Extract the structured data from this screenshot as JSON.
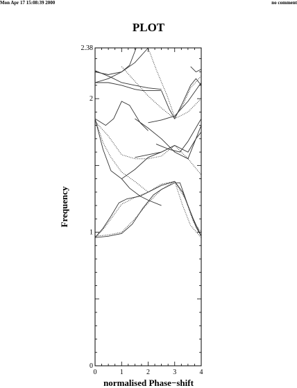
{
  "header": {
    "timestamp": "Mon Apr 17 15:08:39 2000",
    "comment": "no comment"
  },
  "chart_data": {
    "type": "line",
    "title": "PLOT",
    "xlabel": "normalised Phase−shift",
    "ylabel": "Frequency",
    "xlim": [
      0,
      4
    ],
    "ylim": [
      0,
      2.38
    ],
    "xticks": [
      "0",
      "1",
      "2",
      "3",
      "4"
    ],
    "yticks": [
      "0",
      "1",
      "2",
      "2.38"
    ],
    "grid": false,
    "series": [
      {
        "style": "solid",
        "points": [
          [
            0,
            2.2
          ],
          [
            0.5,
            2.18
          ],
          [
            1,
            2.2
          ],
          [
            1.5,
            2.27
          ],
          [
            2,
            2.38
          ]
        ]
      },
      {
        "style": "solid",
        "points": [
          [
            0,
            2.12
          ],
          [
            0.5,
            2.15
          ],
          [
            1,
            2.2
          ],
          [
            1.3,
            2.25
          ],
          [
            1.55,
            2.38
          ]
        ]
      },
      {
        "style": "solid",
        "points": [
          [
            0,
            2.12
          ],
          [
            0.5,
            2.12
          ],
          [
            1,
            2.1
          ],
          [
            1.5,
            2.07
          ],
          [
            1.8,
            2.06
          ],
          [
            2.5,
            2.06
          ]
        ]
      },
      {
        "style": "solid",
        "points": [
          [
            0,
            2.21
          ],
          [
            0.6,
            2.16
          ],
          [
            1,
            2.12
          ],
          [
            1.5,
            2.1
          ],
          [
            2,
            2.08
          ],
          [
            2.5,
            2.07
          ]
        ]
      },
      {
        "style": "dotted",
        "points": [
          [
            1,
            2.24
          ],
          [
            1.5,
            2.13
          ],
          [
            2,
            2.02
          ],
          [
            2.5,
            1.93
          ],
          [
            3,
            1.85
          ],
          [
            3.5,
            1.9
          ],
          [
            4,
            2.0
          ]
        ]
      },
      {
        "style": "dotted",
        "points": [
          [
            2,
            2.38
          ],
          [
            2.3,
            2.22
          ],
          [
            2.7,
            2.03
          ],
          [
            3,
            1.86
          ],
          [
            3.3,
            1.95
          ],
          [
            3.6,
            2.08
          ],
          [
            4,
            2.17
          ]
        ]
      },
      {
        "style": "solid",
        "points": [
          [
            2.5,
            2.06
          ],
          [
            2.8,
            1.92
          ],
          [
            3,
            1.85
          ],
          [
            3.3,
            1.97
          ],
          [
            3.6,
            2.1
          ],
          [
            3.8,
            2.15
          ],
          [
            4,
            2.1
          ]
        ]
      },
      {
        "style": "solid",
        "points": [
          [
            3.6,
            2.24
          ],
          [
            3.8,
            2.2
          ],
          [
            4,
            2.22
          ]
        ]
      },
      {
        "style": "solid",
        "points": [
          [
            0,
            1.85
          ],
          [
            0.4,
            1.8
          ],
          [
            0.7,
            1.85
          ],
          [
            1,
            1.98
          ],
          [
            1.3,
            1.95
          ],
          [
            1.7,
            1.82
          ],
          [
            2,
            1.76
          ]
        ]
      },
      {
        "style": "solid",
        "points": [
          [
            0,
            1.85
          ],
          [
            0.3,
            1.62
          ],
          [
            0.6,
            1.46
          ],
          [
            1,
            1.4
          ],
          [
            1.5,
            1.47
          ],
          [
            2,
            1.56
          ],
          [
            2.5,
            1.6
          ],
          [
            3,
            1.65
          ]
        ]
      },
      {
        "style": "dotted",
        "points": [
          [
            0,
            1.85
          ],
          [
            0.3,
            1.67
          ],
          [
            0.6,
            1.56
          ],
          [
            1,
            1.45
          ],
          [
            1.5,
            1.38
          ],
          [
            2,
            1.3
          ]
        ]
      },
      {
        "style": "dotted",
        "points": [
          [
            0,
            1.83
          ],
          [
            0.5,
            1.72
          ],
          [
            1,
            1.58
          ],
          [
            1.5,
            1.55
          ],
          [
            2,
            1.55
          ],
          [
            2.5,
            1.57
          ],
          [
            3,
            1.65
          ],
          [
            3.5,
            1.55
          ],
          [
            4,
            1.43
          ]
        ]
      },
      {
        "style": "solid",
        "points": [
          [
            2,
            1.82
          ],
          [
            2.5,
            1.84
          ],
          [
            3,
            1.87
          ],
          [
            3.5,
            1.98
          ],
          [
            4,
            2.12
          ]
        ]
      },
      {
        "style": "solid",
        "points": [
          [
            1.5,
            1.85
          ],
          [
            2,
            1.78
          ],
          [
            2.5,
            1.7
          ],
          [
            3,
            1.6
          ],
          [
            3.5,
            1.55
          ],
          [
            4,
            1.8
          ]
        ]
      },
      {
        "style": "solid",
        "points": [
          [
            2.3,
            1.66
          ],
          [
            2.8,
            1.62
          ],
          [
            3.2,
            1.6
          ],
          [
            3.5,
            1.68
          ],
          [
            4,
            1.85
          ]
        ]
      },
      {
        "style": "solid",
        "points": [
          [
            1.5,
            1.56
          ],
          [
            2,
            1.58
          ],
          [
            2.5,
            1.6
          ],
          [
            3,
            1.65
          ],
          [
            3.5,
            1.6
          ],
          [
            3.8,
            1.7
          ],
          [
            4,
            1.75
          ]
        ]
      },
      {
        "style": "solid",
        "points": [
          [
            1,
            1.4
          ],
          [
            1.3,
            1.33
          ],
          [
            1.7,
            1.27
          ],
          [
            2,
            1.24
          ],
          [
            2.5,
            1.2
          ]
        ]
      },
      {
        "style": "solid",
        "points": [
          [
            0,
            0.96
          ],
          [
            0.3,
            1.03
          ],
          [
            0.6,
            1.12
          ],
          [
            0.9,
            1.22
          ],
          [
            1.2,
            1.25
          ],
          [
            1.7,
            1.27
          ],
          [
            2,
            1.3
          ],
          [
            2.5,
            1.35
          ],
          [
            3,
            1.38
          ],
          [
            3.3,
            1.3
          ],
          [
            3.7,
            1.1
          ],
          [
            4,
            0.97
          ]
        ]
      },
      {
        "style": "solid",
        "points": [
          [
            0,
            0.96
          ],
          [
            0.5,
            0.97
          ],
          [
            1,
            0.99
          ],
          [
            1.4,
            1.06
          ],
          [
            1.8,
            1.18
          ],
          [
            2.2,
            1.28
          ],
          [
            2.5,
            1.32
          ],
          [
            3,
            1.37
          ],
          [
            3.2,
            1.37
          ],
          [
            3.5,
            1.2
          ],
          [
            3.8,
            1.04
          ],
          [
            4,
            0.97
          ]
        ]
      },
      {
        "style": "dotted",
        "points": [
          [
            0,
            0.96
          ],
          [
            0.3,
            1.02
          ],
          [
            0.6,
            1.1
          ],
          [
            1,
            1.21
          ],
          [
            1.5,
            1.26
          ],
          [
            2,
            1.3
          ],
          [
            2.5,
            1.36
          ],
          [
            3,
            1.38
          ],
          [
            3.3,
            1.2
          ],
          [
            3.6,
            1.05
          ],
          [
            4,
            0.96
          ]
        ]
      },
      {
        "style": "dotted",
        "points": [
          [
            0,
            0.97
          ],
          [
            0.5,
            0.98
          ],
          [
            1,
            1.0
          ],
          [
            1.5,
            1.1
          ],
          [
            2,
            1.22
          ],
          [
            2.5,
            1.32
          ],
          [
            3,
            1.38
          ],
          [
            3.4,
            1.25
          ],
          [
            3.7,
            1.08
          ],
          [
            4,
            1.0
          ]
        ]
      }
    ]
  }
}
